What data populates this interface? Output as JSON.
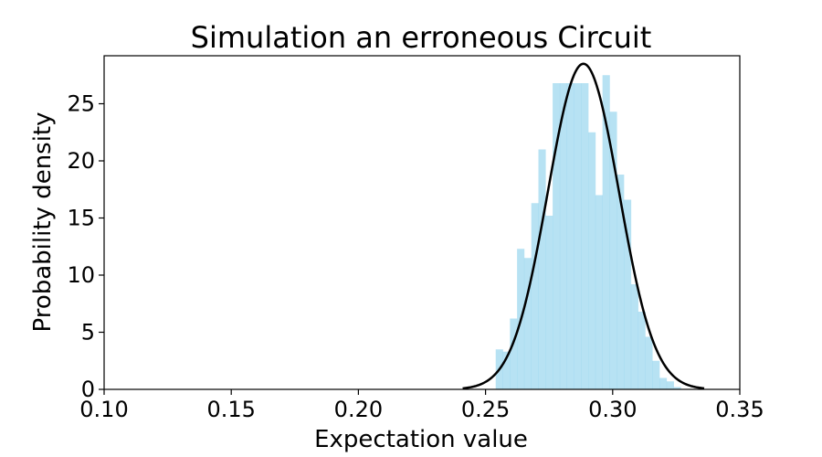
{
  "chart_data": {
    "type": "histogram",
    "title": "Simulation an erroneous Circuit",
    "xlabel": "Expectation value",
    "ylabel": "Probability density",
    "xlim": [
      0.1,
      0.35
    ],
    "ylim": [
      0,
      29.2
    ],
    "xticks": [
      0.1,
      0.15,
      0.2,
      0.25,
      0.3,
      0.35
    ],
    "xtick_labels": [
      "0.10",
      "0.15",
      "0.20",
      "0.25",
      "0.30",
      "0.35"
    ],
    "yticks": [
      0,
      5,
      10,
      15,
      20,
      25
    ],
    "ytick_labels": [
      "0",
      "5",
      "10",
      "15",
      "20",
      "25"
    ],
    "grid": false,
    "histogram": {
      "color": "#87ceeb",
      "alpha": 0.6,
      "bin_width": 0.0028,
      "bin_starts": [
        0.254,
        0.2568,
        0.2596,
        0.2624,
        0.2652,
        0.268,
        0.2708,
        0.2736,
        0.2764,
        0.2792,
        0.282,
        0.2848,
        0.2876,
        0.2904,
        0.2932,
        0.296,
        0.2988,
        0.3016,
        0.3044,
        0.3072,
        0.31,
        0.3128,
        0.3156,
        0.3184,
        0.3212,
        0.324
      ],
      "density": [
        3.5,
        3.3,
        6.2,
        12.3,
        11.5,
        16.3,
        21.0,
        15.2,
        26.8,
        26.8,
        26.8,
        26.8,
        26.8,
        22.5,
        17.0,
        27.5,
        24.3,
        18.8,
        16.6,
        9.2,
        6.8,
        4.6,
        2.5,
        1.0,
        0.7,
        0.2
      ]
    },
    "normal_fit": {
      "color": "#000000",
      "mean": 0.2885,
      "std": 0.014,
      "peak": 28.5,
      "x_range": [
        0.241,
        0.336
      ]
    }
  }
}
